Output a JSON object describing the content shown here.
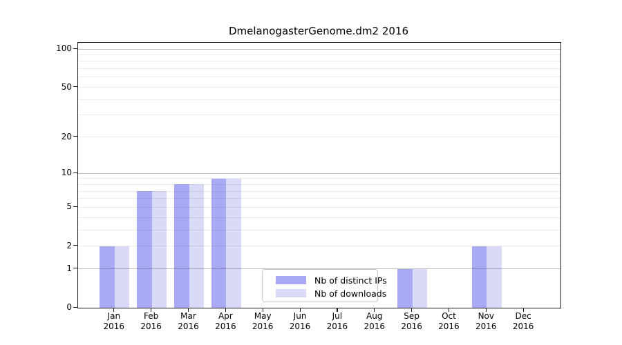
{
  "figure": {
    "background_color": "#ffffff"
  },
  "chart_data": {
    "type": "bar",
    "title": "DmelanogasterGenome.dm2 2016",
    "categories": [
      "Jan",
      "Feb",
      "Mar",
      "Apr",
      "May",
      "Jun",
      "Jul",
      "Aug",
      "Sep",
      "Oct",
      "Nov",
      "Dec"
    ],
    "year_label": "2016",
    "series": [
      {
        "name": "Nb of distinct IPs",
        "color": "#a9a9f4",
        "values": [
          2,
          7,
          8,
          9,
          0,
          0,
          0,
          0,
          1,
          0,
          2,
          0
        ]
      },
      {
        "name": "Nb of downloads",
        "color": "#d9d9f8",
        "values": [
          2,
          7,
          8,
          9,
          0,
          0,
          0,
          0,
          1,
          0,
          2,
          0
        ]
      }
    ],
    "yscale": "log1p",
    "ylim": [
      0,
      100
    ],
    "yticks": [
      0,
      1,
      2,
      5,
      10,
      20,
      50,
      100
    ],
    "gridlines_major": [
      1,
      10,
      100
    ],
    "gridlines_minor": [
      2,
      3,
      4,
      5,
      6,
      7,
      8,
      9,
      20,
      30,
      40,
      50,
      60,
      70,
      80,
      90
    ],
    "grid_orientation": "horizontal",
    "grid_major_color": "#c3c3c3",
    "grid_minor_color": "#ebebeb",
    "legend": {
      "position": "lower-center",
      "items": [
        {
          "label": "Nb of distinct IPs",
          "color": "#a9a9f4"
        },
        {
          "label": "Nb of downloads",
          "color": "#d9d9f8"
        }
      ]
    }
  }
}
